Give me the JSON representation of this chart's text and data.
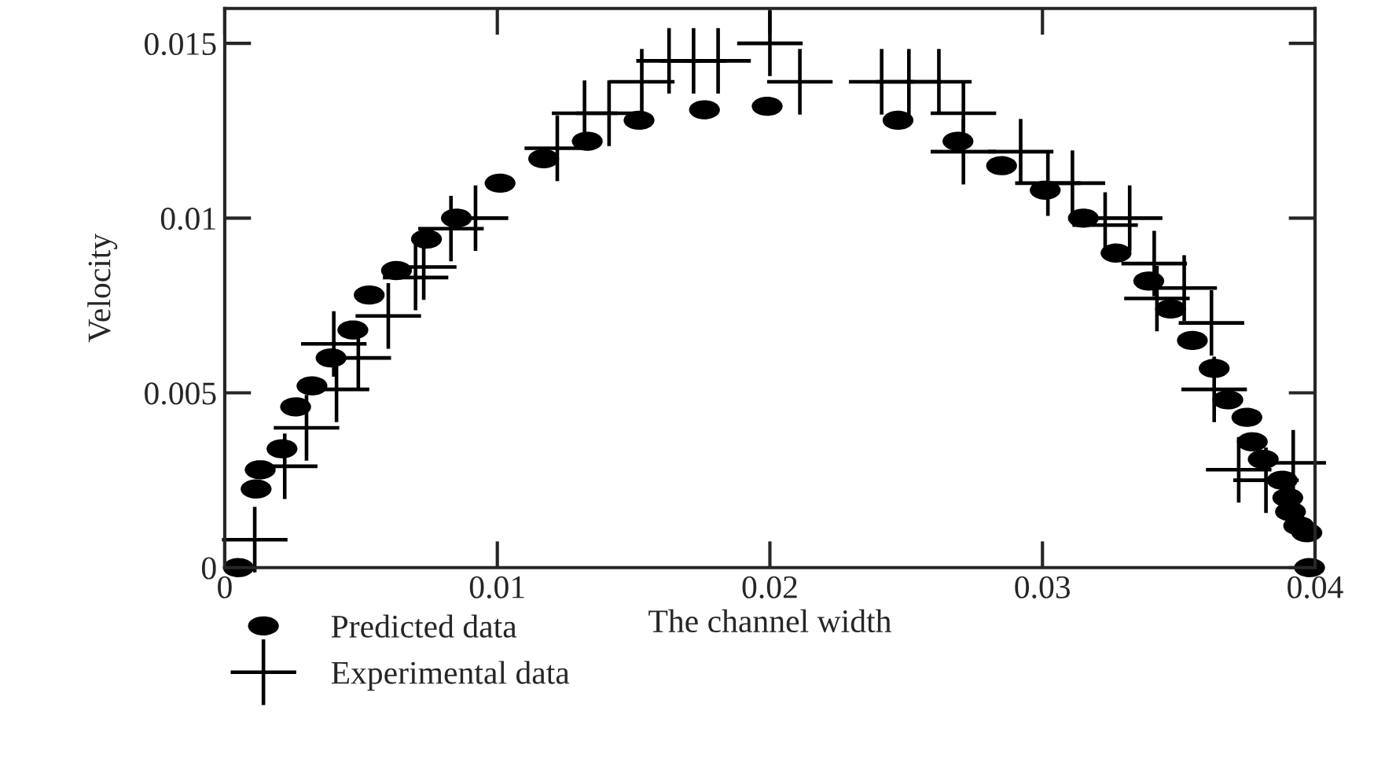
{
  "chart_data": {
    "type": "scatter",
    "xlabel": "The channel width",
    "ylabel": "Velocity",
    "xlim": [
      0,
      0.04
    ],
    "xticks": [
      0,
      0.01,
      0.02,
      0.03,
      0.04
    ],
    "ylim": [
      0,
      0.016
    ],
    "yticks": [
      0,
      0.005,
      0.01,
      0.015
    ],
    "grid": false,
    "legend": "bottom left",
    "series": [
      {
        "name": "Predicted data",
        "color": "#000000",
        "marker": "circle",
        "x": [
          0.0005,
          0.00115,
          0.0013,
          0.0021,
          0.0026,
          0.0032,
          0.0039,
          0.0047,
          0.0053,
          0.0063,
          0.0074,
          0.0085,
          0.0101,
          0.0117,
          0.0133,
          0.0152,
          0.0176,
          0.0199,
          0.0247,
          0.0269,
          0.0285,
          0.0301,
          0.0315,
          0.0327,
          0.0339,
          0.0347,
          0.0355,
          0.0363,
          0.0368,
          0.0375,
          0.0377,
          0.0381,
          0.0388,
          0.039,
          0.0391,
          0.0394,
          0.0397,
          0.0398
        ],
        "values": [
          0.0,
          0.00225,
          0.0028,
          0.0034,
          0.0046,
          0.0052,
          0.006,
          0.0068,
          0.0078,
          0.0085,
          0.0094,
          0.01,
          0.011,
          0.0117,
          0.0122,
          0.0128,
          0.0131,
          0.0132,
          0.0128,
          0.0122,
          0.0115,
          0.0108,
          0.01,
          0.009,
          0.0082,
          0.0074,
          0.0065,
          0.0057,
          0.0048,
          0.0043,
          0.0036,
          0.0031,
          0.0025,
          0.002,
          0.0016,
          0.0012,
          0.001,
          0.0
        ]
      },
      {
        "name": "Experimental data",
        "color": "#000000",
        "marker": "cross",
        "x": [
          0.0011,
          0.0022,
          0.003,
          0.004,
          0.0041,
          0.0049,
          0.006,
          0.007,
          0.0073,
          0.0083,
          0.0092,
          0.0122,
          0.0132,
          0.0141,
          0.0153,
          0.0163,
          0.0172,
          0.0181,
          0.02,
          0.0211,
          0.0241,
          0.0251,
          0.0262,
          0.0271,
          0.0271,
          0.0292,
          0.0302,
          0.0311,
          0.0323,
          0.0332,
          0.0341,
          0.0342,
          0.0352,
          0.0362,
          0.0363,
          0.0372,
          0.0382,
          0.0392
        ],
        "values": [
          0.0008,
          0.0029,
          0.004,
          0.0064,
          0.0051,
          0.006,
          0.0072,
          0.0083,
          0.0086,
          0.0097,
          0.01,
          0.012,
          0.013,
          0.013,
          0.0139,
          0.0145,
          0.0145,
          0.0145,
          0.015,
          0.0139,
          0.0139,
          0.0139,
          0.0139,
          0.013,
          0.0119,
          0.0119,
          0.011,
          0.011,
          0.0098,
          0.01,
          0.0087,
          0.0077,
          0.008,
          0.007,
          0.0051,
          0.0028,
          0.0025,
          0.003
        ]
      }
    ]
  }
}
